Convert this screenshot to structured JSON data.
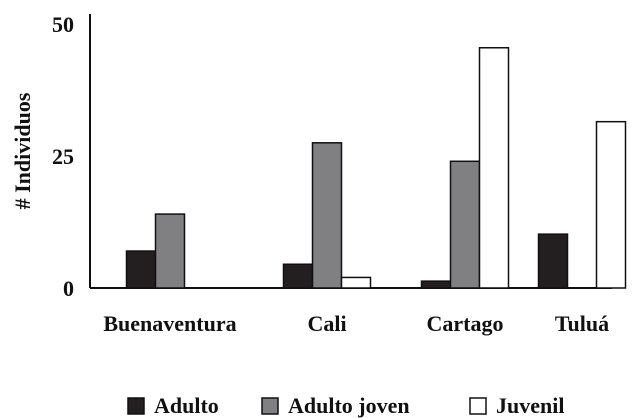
{
  "chart_data": {
    "type": "bar",
    "title": "",
    "xlabel": "",
    "ylabel": "# Individuos",
    "categories": [
      "Buenaventura",
      "Cali",
      "Cartago",
      "Tuluá"
    ],
    "series": [
      {
        "name": "Adulto",
        "values": [
          7,
          4.5,
          1.3,
          10.2
        ],
        "color": "#231f20"
      },
      {
        "name": "Adulto joven",
        "values": [
          14,
          27.5,
          24,
          null
        ],
        "color": "#808083"
      },
      {
        "name": "Juvenil",
        "values": [
          null,
          2,
          45.5,
          31.5
        ],
        "color": "#ffffff"
      }
    ],
    "ylim": [
      0,
      50
    ],
    "yticks": [
      "0",
      "25",
      "50"
    ],
    "grid": false,
    "legend_position": "bottom"
  }
}
